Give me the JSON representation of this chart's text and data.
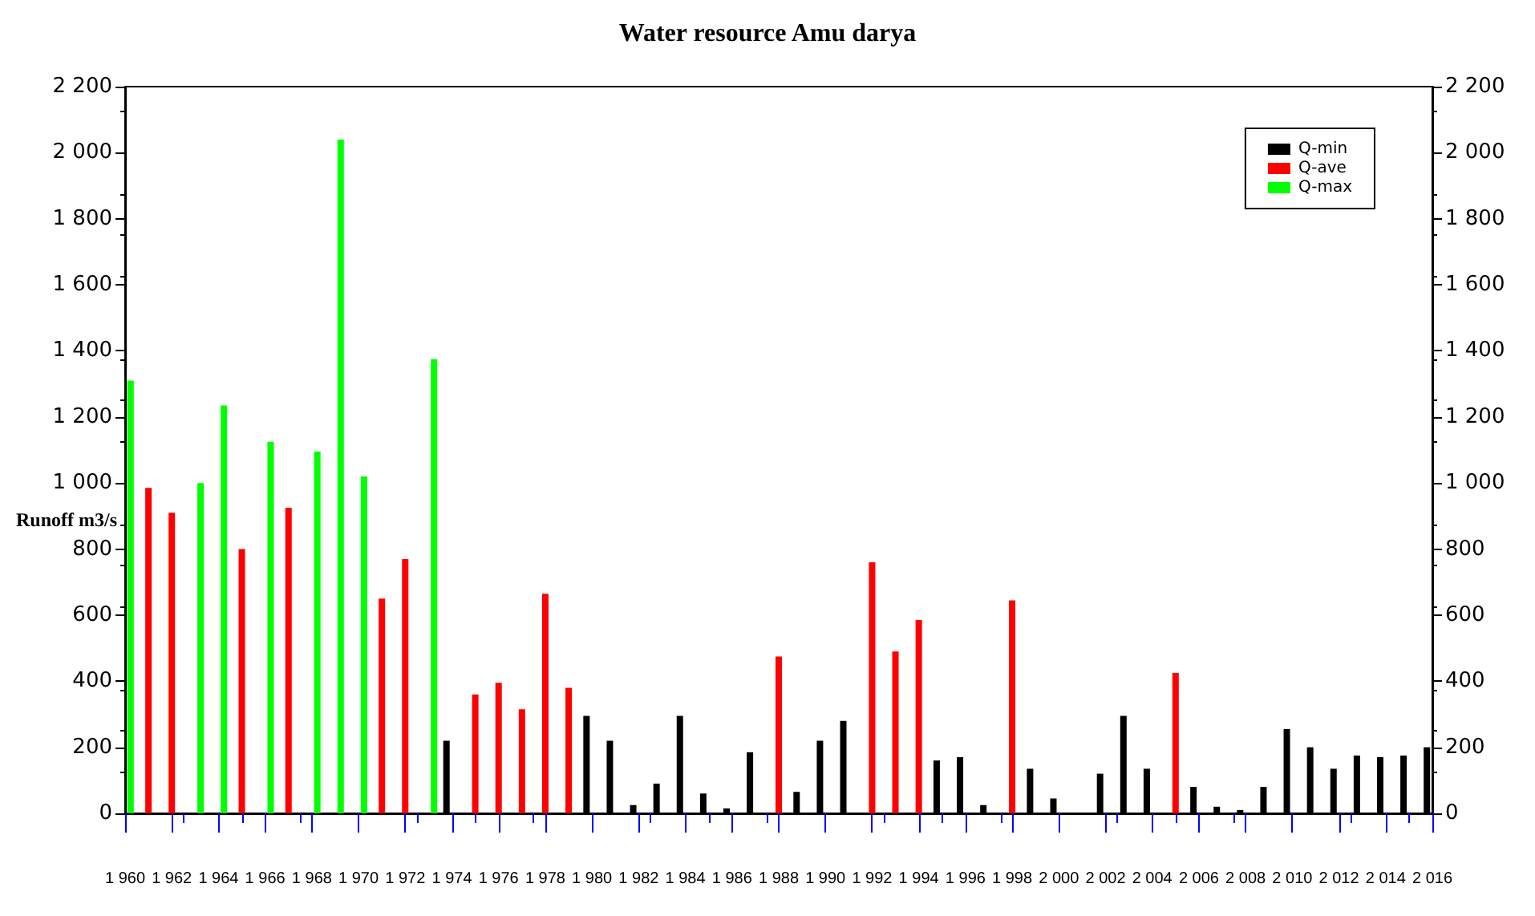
{
  "chart_data": {
    "type": "bar",
    "title": "Water resource Amu darya",
    "ylabel": "Runoff m3/s",
    "x": [
      1960,
      1961,
      1962,
      1963,
      1964,
      1965,
      1966,
      1967,
      1968,
      1969,
      1970,
      1971,
      1972,
      1973,
      1974,
      1975,
      1976,
      1977,
      1978,
      1979,
      1980,
      1981,
      1982,
      1983,
      1984,
      1985,
      1986,
      1987,
      1988,
      1989,
      1990,
      1991,
      1992,
      1993,
      1994,
      1995,
      1996,
      1997,
      1998,
      1999,
      2000,
      2001,
      2002,
      2003,
      2004,
      2005,
      2006,
      2007,
      2008,
      2009,
      2010,
      2011,
      2012,
      2013,
      2014,
      2015,
      2016
    ],
    "series": [
      {
        "name": "Q-min",
        "color": "#000000",
        "values": [
          null,
          null,
          null,
          null,
          null,
          null,
          null,
          null,
          null,
          null,
          null,
          null,
          null,
          null,
          220,
          null,
          null,
          null,
          null,
          null,
          295,
          220,
          25,
          90,
          295,
          60,
          15,
          185,
          null,
          65,
          220,
          280,
          null,
          null,
          null,
          160,
          170,
          25,
          null,
          135,
          45,
          null,
          120,
          295,
          135,
          null,
          80,
          20,
          10,
          80,
          255,
          200,
          135,
          175,
          170,
          175,
          200
        ]
      },
      {
        "name": "Q-ave",
        "color": "#ff0000",
        "values": [
          null,
          985,
          910,
          null,
          null,
          800,
          null,
          925,
          null,
          null,
          null,
          650,
          770,
          null,
          null,
          360,
          395,
          315,
          665,
          380,
          null,
          null,
          null,
          null,
          null,
          null,
          null,
          null,
          475,
          null,
          null,
          null,
          760,
          490,
          585,
          null,
          null,
          null,
          645,
          null,
          null,
          null,
          null,
          null,
          null,
          425,
          null,
          null,
          null,
          null,
          null,
          null,
          null,
          null,
          null,
          null,
          null
        ]
      },
      {
        "name": "Q-max",
        "color": "#00ff00",
        "values": [
          1310,
          null,
          null,
          1000,
          1235,
          null,
          1125,
          null,
          1095,
          2040,
          1020,
          null,
          null,
          1375,
          null,
          null,
          null,
          null,
          null,
          null,
          null,
          null,
          null,
          null,
          null,
          null,
          null,
          null,
          null,
          null,
          null,
          null,
          null,
          null,
          null,
          null,
          null,
          null,
          null,
          null,
          null,
          null,
          null,
          null,
          null,
          null,
          null,
          null,
          null,
          null,
          null,
          null,
          null,
          null,
          null,
          null,
          null
        ]
      }
    ],
    "xlim": [
      1960,
      2016
    ],
    "xticks": [
      {
        "value": 1960,
        "label": "1 960"
      },
      {
        "value": 1962,
        "label": "1 962"
      },
      {
        "value": 1964,
        "label": "1 964"
      },
      {
        "value": 1966,
        "label": "1 966"
      },
      {
        "value": 1968,
        "label": "1 968"
      },
      {
        "value": 1970,
        "label": "1 970"
      },
      {
        "value": 1972,
        "label": "1 972"
      },
      {
        "value": 1974,
        "label": "1 974"
      },
      {
        "value": 1976,
        "label": "1 976"
      },
      {
        "value": 1978,
        "label": "1 978"
      },
      {
        "value": 1980,
        "label": "1 980"
      },
      {
        "value": 1982,
        "label": "1 982"
      },
      {
        "value": 1984,
        "label": "1 984"
      },
      {
        "value": 1986,
        "label": "1 986"
      },
      {
        "value": 1988,
        "label": "1 988"
      },
      {
        "value": 1990,
        "label": "1 990"
      },
      {
        "value": 1992,
        "label": "1 992"
      },
      {
        "value": 1994,
        "label": "1 994"
      },
      {
        "value": 1996,
        "label": "1 996"
      },
      {
        "value": 1998,
        "label": "1 998"
      },
      {
        "value": 2000,
        "label": "2 000"
      },
      {
        "value": 2002,
        "label": "2 002"
      },
      {
        "value": 2004,
        "label": "2 004"
      },
      {
        "value": 2006,
        "label": "2 006"
      },
      {
        "value": 2008,
        "label": "2 008"
      },
      {
        "value": 2010,
        "label": "2 010"
      },
      {
        "value": 2012,
        "label": "2 012"
      },
      {
        "value": 2014,
        "label": "2 014"
      },
      {
        "value": 2016,
        "label": "2 016"
      }
    ],
    "ylim": [
      0,
      2200
    ],
    "yticks": [
      0,
      200,
      400,
      600,
      800,
      {
        "value": 1000,
        "label": "1 000"
      },
      {
        "value": 1200,
        "label": "1 200"
      },
      {
        "value": 1400,
        "label": "1 400"
      },
      {
        "value": 1600,
        "label": "1 600"
      },
      {
        "value": 1800,
        "label": "1 800"
      },
      {
        "value": 2000,
        "label": "2 000"
      },
      {
        "value": 2200,
        "label": "2 200"
      }
    ],
    "y2lim": [
      0,
      2200
    ],
    "y2ticks": [
      0,
      200,
      400,
      600,
      800,
      {
        "value": 1000,
        "label": "1 000"
      },
      {
        "value": 1200,
        "label": "1 200"
      },
      {
        "value": 1400,
        "label": "1 400"
      },
      {
        "value": 1600,
        "label": "1 600"
      },
      {
        "value": 1800,
        "label": "1 800"
      },
      {
        "value": 2000,
        "label": "2 000"
      },
      {
        "value": 2200,
        "label": "2 200"
      }
    ],
    "grid": false,
    "legend": "top right"
  }
}
